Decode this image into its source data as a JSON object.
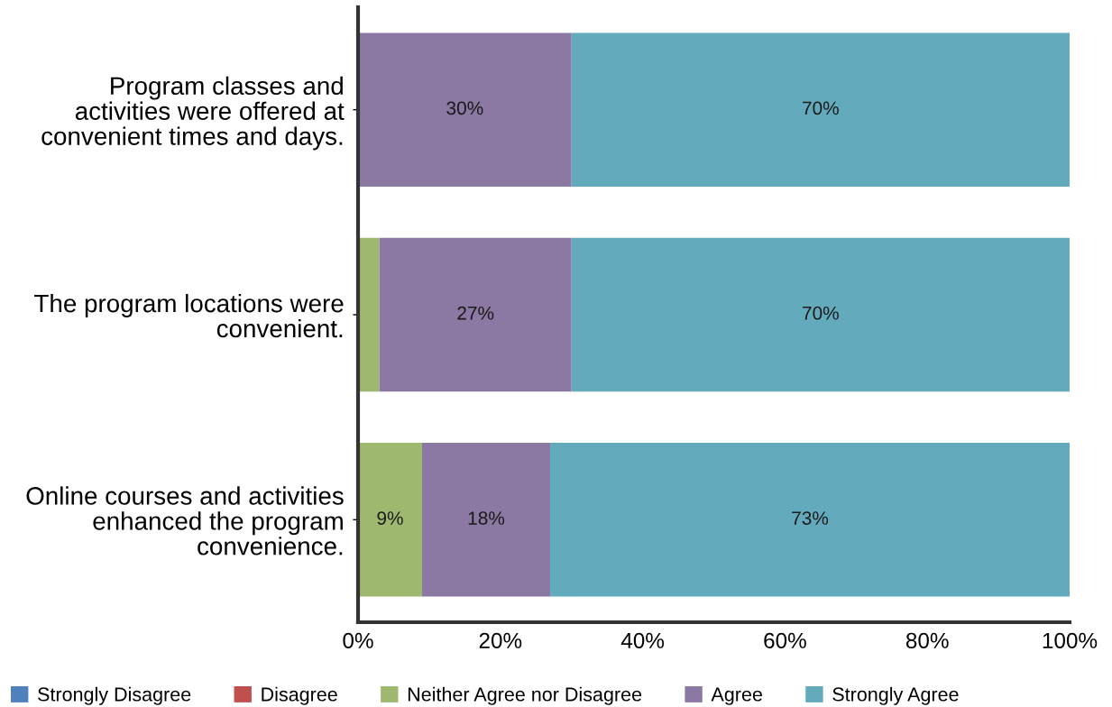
{
  "chart_data": {
    "type": "bar",
    "orientation": "horizontal",
    "stacked": true,
    "categories": [
      "Program classes and\nactivities were offered at\nconvenient times and days.",
      "The program locations were\nconvenient.",
      "Online courses and activities\nenhanced the program\nconvenience."
    ],
    "series": [
      {
        "name": "Strongly Disagree",
        "color": "#4f81bd",
        "values": [
          0,
          0,
          0
        ]
      },
      {
        "name": "Disagree",
        "color": "#c0504d",
        "values": [
          0,
          0,
          0
        ]
      },
      {
        "name": "Neither Agree nor Disagree",
        "color": "#9fb86f",
        "values": [
          0,
          3,
          9
        ],
        "value_labels": [
          null,
          null,
          "9%"
        ]
      },
      {
        "name": "Agree",
        "color": "#8b78a3",
        "values": [
          30,
          27,
          18
        ],
        "value_labels": [
          "30%",
          "27%",
          "18%"
        ]
      },
      {
        "name": "Strongly Agree",
        "color": "#63aabd",
        "values": [
          70,
          70,
          73
        ],
        "value_labels": [
          "70%",
          "70%",
          "73%"
        ]
      }
    ],
    "xlim": [
      0,
      100
    ],
    "xticks": [
      {
        "value": 0,
        "label": "0%"
      },
      {
        "value": 20,
        "label": "20%"
      },
      {
        "value": 40,
        "label": "40%"
      },
      {
        "value": 60,
        "label": "60%"
      },
      {
        "value": 80,
        "label": "80%"
      },
      {
        "value": 100,
        "label": "100%"
      }
    ],
    "legend": "bottom"
  }
}
